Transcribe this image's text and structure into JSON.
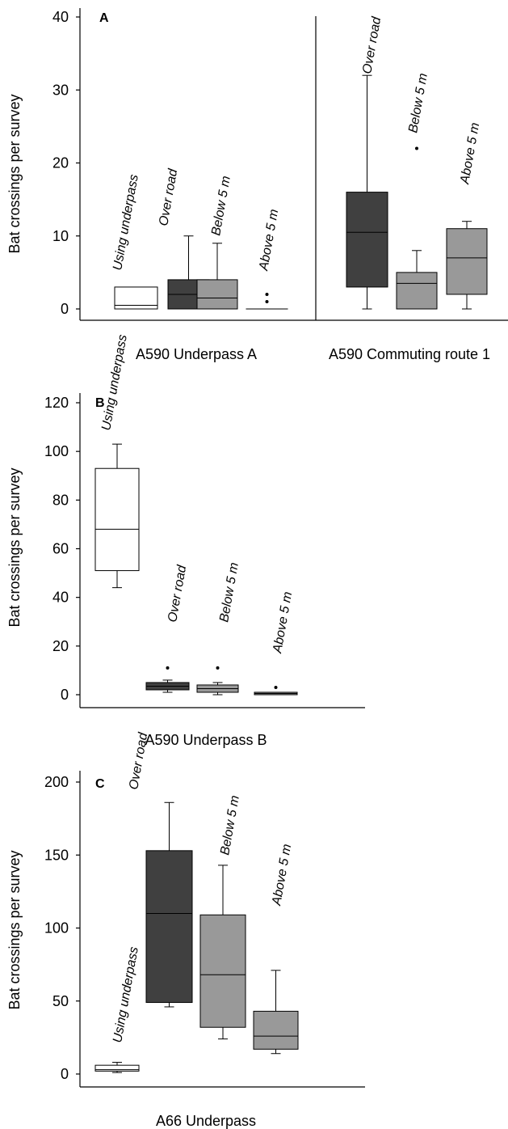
{
  "colors": {
    "using_underpass": "#ffffff",
    "over_road": "#404040",
    "below_5m": "#999999",
    "above_5m": "#999999",
    "stroke": "#000000"
  },
  "chart_data": [
    {
      "type": "box",
      "panel": "A",
      "ylabel": "Bat crossings per survey",
      "ylim": [
        0,
        40
      ],
      "yticks": [
        0,
        10,
        20,
        30,
        40
      ],
      "groups": [
        "A590 Underpass A",
        "A590 Commuting route 1"
      ],
      "boxes": [
        {
          "group": "A590 Underpass A",
          "label": "Using underpass",
          "category": "using_underpass",
          "min": 0,
          "q1": 0,
          "median": 0.5,
          "q3": 3,
          "max": 3,
          "outliers": []
        },
        {
          "group": "A590 Underpass A",
          "label": "Over road",
          "category": "over_road",
          "min": 0,
          "q1": 0,
          "median": 2,
          "q3": 4,
          "max": 10,
          "outliers": []
        },
        {
          "group": "A590 Underpass A",
          "label": "Below 5 m",
          "category": "below_5m",
          "min": 0,
          "q1": 0,
          "median": 1.5,
          "q3": 4,
          "max": 9,
          "outliers": []
        },
        {
          "group": "A590 Underpass A",
          "label": "Above 5 m",
          "category": "above_5m",
          "min": 0,
          "q1": 0,
          "median": 0,
          "q3": 0,
          "max": 0,
          "outliers": [
            1,
            2
          ]
        },
        {
          "group": "A590 Commuting route 1",
          "label": "Over road",
          "category": "over_road",
          "min": 0,
          "q1": 3,
          "median": 10.5,
          "q3": 16,
          "max": 32,
          "outliers": []
        },
        {
          "group": "A590 Commuting route 1",
          "label": "Below 5 m",
          "category": "below_5m",
          "min": 0,
          "q1": 0,
          "median": 3.5,
          "q3": 5,
          "max": 8,
          "outliers": [
            22
          ]
        },
        {
          "group": "A590 Commuting route 1",
          "label": "Above 5 m",
          "category": "above_5m",
          "min": 0,
          "q1": 2,
          "median": 7,
          "q3": 11,
          "max": 12,
          "outliers": []
        }
      ]
    },
    {
      "type": "box",
      "panel": "B",
      "ylabel": "Bat crossings per survey",
      "ylim": [
        0,
        120
      ],
      "yticks": [
        0,
        20,
        40,
        60,
        80,
        100,
        120
      ],
      "groups": [
        "A590 Underpass B"
      ],
      "boxes": [
        {
          "group": "A590 Underpass B",
          "label": "Using underpass",
          "category": "using_underpass",
          "min": 44,
          "q1": 51,
          "median": 68,
          "q3": 93,
          "max": 103,
          "outliers": []
        },
        {
          "group": "A590 Underpass B",
          "label": "Over road",
          "category": "over_road",
          "min": 1,
          "q1": 2,
          "median": 3.5,
          "q3": 5,
          "max": 6,
          "outliers": [
            11
          ]
        },
        {
          "group": "A590 Underpass B",
          "label": "Below 5 m",
          "category": "below_5m",
          "min": 0,
          "q1": 1,
          "median": 2.5,
          "q3": 4,
          "max": 5,
          "outliers": [
            11
          ]
        },
        {
          "group": "A590 Underpass B",
          "label": "Above 5 m",
          "category": "above_5m",
          "min": 0,
          "q1": 0,
          "median": 0.5,
          "q3": 1,
          "max": 1,
          "outliers": [
            3
          ]
        }
      ]
    },
    {
      "type": "box",
      "panel": "C",
      "ylabel": "Bat crossings per survey",
      "ylim": [
        0,
        200
      ],
      "yticks": [
        0,
        50,
        100,
        150,
        200
      ],
      "groups": [
        "A66 Underpass"
      ],
      "boxes": [
        {
          "group": "A66 Underpass",
          "label": "Using underpass",
          "category": "using_underpass",
          "min": 1,
          "q1": 2,
          "median": 3,
          "q3": 6,
          "max": 8,
          "outliers": []
        },
        {
          "group": "A66 Underpass",
          "label": "Over road",
          "category": "over_road",
          "min": 46,
          "q1": 49,
          "median": 110,
          "q3": 153,
          "max": 186,
          "outliers": []
        },
        {
          "group": "A66 Underpass",
          "label": "Below 5 m",
          "category": "below_5m",
          "min": 24,
          "q1": 32,
          "median": 68,
          "q3": 109,
          "max": 143,
          "outliers": []
        },
        {
          "group": "A66 Underpass",
          "label": "Above 5 m",
          "category": "above_5m",
          "min": 14,
          "q1": 17,
          "median": 26,
          "q3": 43,
          "max": 71,
          "outliers": []
        }
      ]
    }
  ]
}
